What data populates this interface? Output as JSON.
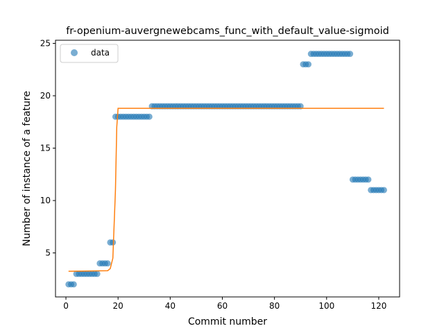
{
  "chart_data": {
    "type": "scatter",
    "title": "fr-openium-auvergnewebcams_func_with_default_value-sigmoid",
    "xlabel": "Commit number",
    "ylabel": "Number of instance of a feature",
    "xlim": [
      -4,
      128
    ],
    "ylim": [
      0.8,
      25.3
    ],
    "xticks": [
      0,
      20,
      40,
      60,
      80,
      100,
      120
    ],
    "yticks": [
      5,
      10,
      15,
      20,
      25
    ],
    "grid": false,
    "legend": {
      "position": "top-left",
      "entries": [
        "data"
      ]
    },
    "colors": {
      "data": "#1f77b4",
      "fit": "#ff7f0e"
    },
    "series": [
      {
        "name": "data",
        "kind": "scatter",
        "x": [
          1,
          2,
          3,
          4,
          5,
          6,
          7,
          8,
          9,
          10,
          11,
          12,
          13,
          14,
          15,
          16,
          17,
          18,
          19,
          20,
          21,
          22,
          23,
          24,
          25,
          26,
          27,
          28,
          29,
          30,
          31,
          32,
          33,
          34,
          35,
          36,
          37,
          38,
          39,
          40,
          41,
          42,
          43,
          44,
          45,
          46,
          47,
          48,
          49,
          50,
          51,
          52,
          53,
          54,
          55,
          56,
          57,
          58,
          59,
          60,
          61,
          62,
          63,
          64,
          65,
          66,
          67,
          68,
          69,
          70,
          71,
          72,
          73,
          74,
          75,
          76,
          77,
          78,
          79,
          80,
          81,
          82,
          83,
          84,
          85,
          86,
          87,
          88,
          89,
          90,
          91,
          92,
          93,
          94,
          95,
          96,
          97,
          98,
          99,
          100,
          101,
          102,
          103,
          104,
          105,
          106,
          107,
          108,
          109,
          110,
          111,
          112,
          113,
          114,
          115,
          116,
          117,
          118,
          119,
          120,
          121,
          122
        ],
        "y": [
          2,
          2,
          2,
          3,
          3,
          3,
          3,
          3,
          3,
          3,
          3,
          3,
          4,
          4,
          4,
          4,
          6,
          6,
          18,
          18,
          18,
          18,
          18,
          18,
          18,
          18,
          18,
          18,
          18,
          18,
          18,
          18,
          19,
          19,
          19,
          19,
          19,
          19,
          19,
          19,
          19,
          19,
          19,
          19,
          19,
          19,
          19,
          19,
          19,
          19,
          19,
          19,
          19,
          19,
          19,
          19,
          19,
          19,
          19,
          19,
          19,
          19,
          19,
          19,
          19,
          19,
          19,
          19,
          19,
          19,
          19,
          19,
          19,
          19,
          19,
          19,
          19,
          19,
          19,
          19,
          19,
          19,
          19,
          19,
          19,
          19,
          19,
          19,
          19,
          19,
          23,
          23,
          23,
          24,
          24,
          24,
          24,
          24,
          24,
          24,
          24,
          24,
          24,
          24,
          24,
          24,
          24,
          24,
          24,
          12,
          12,
          12,
          12,
          12,
          12,
          12,
          11,
          11,
          11,
          11,
          11,
          11
        ]
      },
      {
        "kind": "line",
        "x": [
          1,
          16,
          17,
          18,
          19,
          19.5,
          20,
          25,
          40,
          60,
          80,
          100,
          122
        ],
        "y": [
          3.25,
          3.3,
          3.5,
          4.5,
          11.0,
          17.0,
          18.8,
          18.8,
          18.8,
          18.8,
          18.8,
          18.8,
          18.8
        ]
      }
    ]
  }
}
